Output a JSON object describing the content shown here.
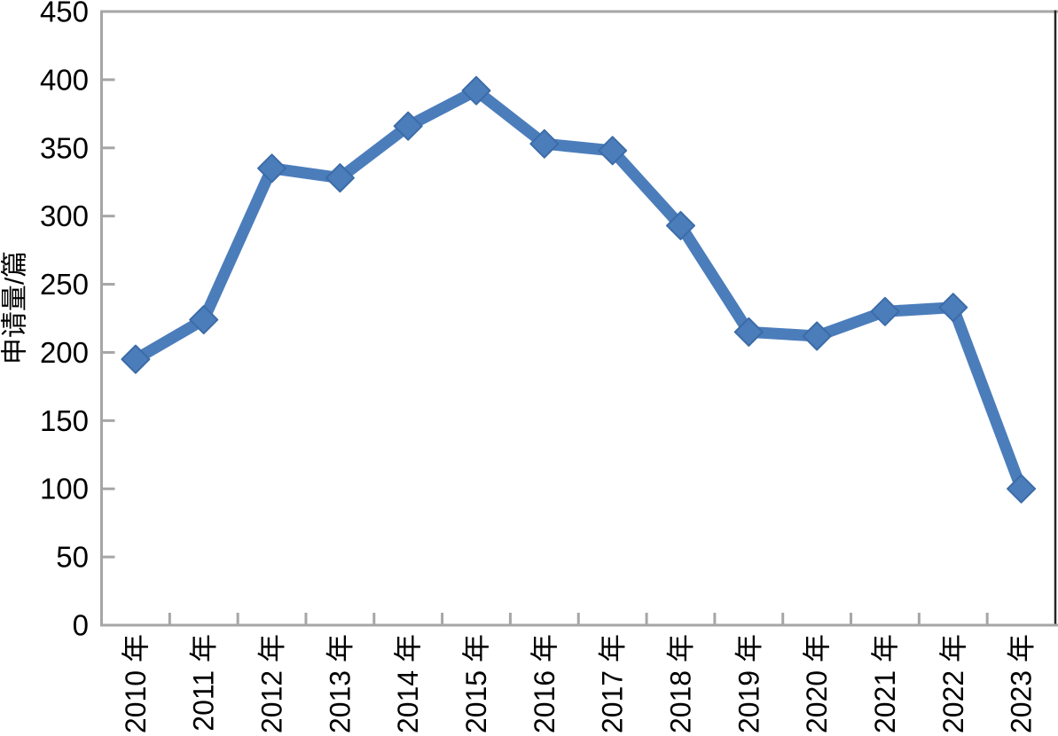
{
  "chart_data": {
    "type": "line",
    "title": "",
    "xlabel": "",
    "ylabel": "申请量/篇",
    "categories": [
      "2010 年",
      "2011 年",
      "2012 年",
      "2013 年",
      "2014 年",
      "2015 年",
      "2016 年",
      "2017 年",
      "2018 年",
      "2019 年",
      "2020 年",
      "2021 年",
      "2022 年",
      "2023 年"
    ],
    "values": [
      195,
      224,
      335,
      328,
      366,
      392,
      353,
      348,
      293,
      215,
      212,
      230,
      233,
      100
    ],
    "ylim": [
      0,
      450
    ],
    "ytick_step": 50,
    "yticks": [
      0,
      50,
      100,
      150,
      200,
      250,
      300,
      350,
      400,
      450
    ],
    "grid": false,
    "legend": false,
    "marker": "diamond",
    "x_tick_label_rotation_deg": -90,
    "colors": {
      "line": "#4B7DBB",
      "marker_fill": "#4B7DBB",
      "marker_edge": "#3C6CA8",
      "axis": "#A6A6A6",
      "right_border": "#262626",
      "text": "#000000",
      "background": "#FFFFFF"
    }
  }
}
